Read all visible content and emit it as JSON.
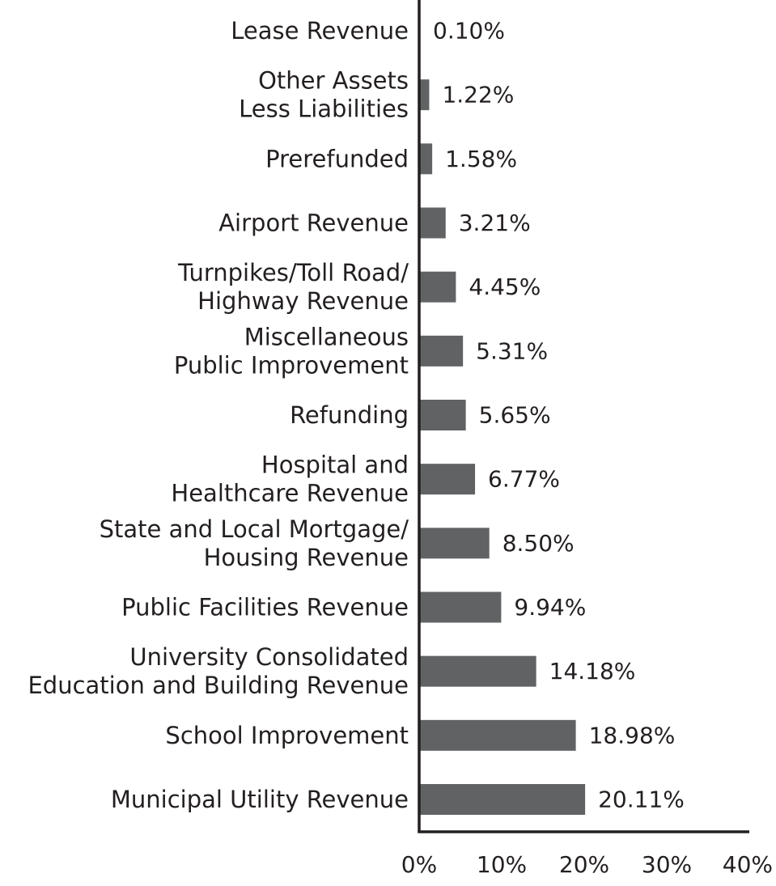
{
  "chart_data": {
    "type": "bar",
    "orientation": "horizontal",
    "categories": [
      [
        "Lease Revenue"
      ],
      [
        "Other Assets",
        "Less Liabilities"
      ],
      [
        "Prerefunded"
      ],
      [
        "Airport Revenue"
      ],
      [
        "Turnpikes/Toll Road/",
        "Highway Revenue"
      ],
      [
        "Miscellaneous",
        "Public Improvement"
      ],
      [
        "Refunding"
      ],
      [
        "Hospital and",
        "Healthcare Revenue"
      ],
      [
        "State and Local Mortgage/",
        "Housing Revenue"
      ],
      [
        "Public Facilities Revenue"
      ],
      [
        "University Consolidated",
        "Education and Building Revenue"
      ],
      [
        "School Improvement"
      ],
      [
        "Municipal Utility Revenue"
      ]
    ],
    "values": [
      0.1,
      1.22,
      1.58,
      3.21,
      4.45,
      5.31,
      5.65,
      6.77,
      8.5,
      9.94,
      14.18,
      18.98,
      20.11
    ],
    "value_labels": [
      "0.10%",
      "1.22%",
      "1.58%",
      "3.21%",
      "4.45%",
      "5.31%",
      "5.65%",
      "6.77%",
      "8.50%",
      "9.94%",
      "14.18%",
      "18.98%",
      "20.11%"
    ],
    "xlim": [
      0,
      40
    ],
    "xticks": [
      0,
      10,
      20,
      30,
      40
    ],
    "xtick_labels": [
      "0%",
      "10%",
      "20%",
      "30%",
      "40%"
    ],
    "grid": false,
    "legend": "none",
    "bar_color": "#616263",
    "axis_color": "#231f20",
    "title": "",
    "xlabel": "",
    "ylabel": ""
  }
}
